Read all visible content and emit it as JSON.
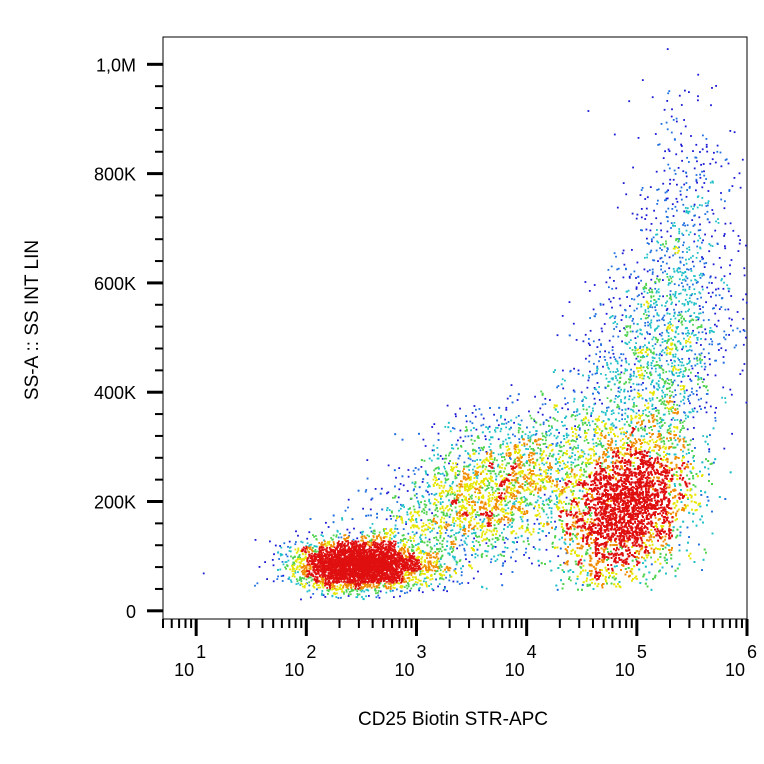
{
  "chart_data": {
    "type": "scatter",
    "subtype": "density-dot-plot",
    "xlabel": "CD25 Biotin STR-APC",
    "ylabel": "SS-A :: SS INT LIN",
    "xscale": "log",
    "yscale": "linear",
    "xlim": [
      5,
      1000000
    ],
    "ylim": [
      -15000,
      1050000
    ],
    "x_ticks": [
      {
        "value": 10,
        "base": "10",
        "exp": "1"
      },
      {
        "value": 100,
        "base": "10",
        "exp": "2"
      },
      {
        "value": 1000,
        "base": "10",
        "exp": "3"
      },
      {
        "value": 10000,
        "base": "10",
        "exp": "4"
      },
      {
        "value": 100000,
        "base": "10",
        "exp": "5"
      },
      {
        "value": 1000000,
        "base": "10",
        "exp": "6"
      }
    ],
    "y_ticks": [
      {
        "value": 0,
        "label": "0"
      },
      {
        "value": 200000,
        "label": "200K"
      },
      {
        "value": 400000,
        "label": "400K"
      },
      {
        "value": 600000,
        "label": "600K"
      },
      {
        "value": 800000,
        "label": "800K"
      },
      {
        "value": 1000000,
        "label": "1,0M"
      }
    ],
    "density_colors": [
      "#1a1ad6",
      "#1f6fe0",
      "#20c0c8",
      "#4cd24c",
      "#e6e600",
      "#f08c00",
      "#e01010"
    ],
    "populations": [
      {
        "x_center": 300,
        "y_center": 85000,
        "n": 4200
      },
      {
        "x_center": 80000,
        "y_center": 190000,
        "n": 7000
      },
      {
        "x_center": 5000,
        "y_center": 220000,
        "n": 3600
      },
      {
        "x_center": 150000,
        "y_center": 450000,
        "n": 1700
      },
      {
        "x_center": 250000,
        "y_center": 750000,
        "n": 300
      }
    ],
    "grid": false,
    "legend": "none"
  }
}
